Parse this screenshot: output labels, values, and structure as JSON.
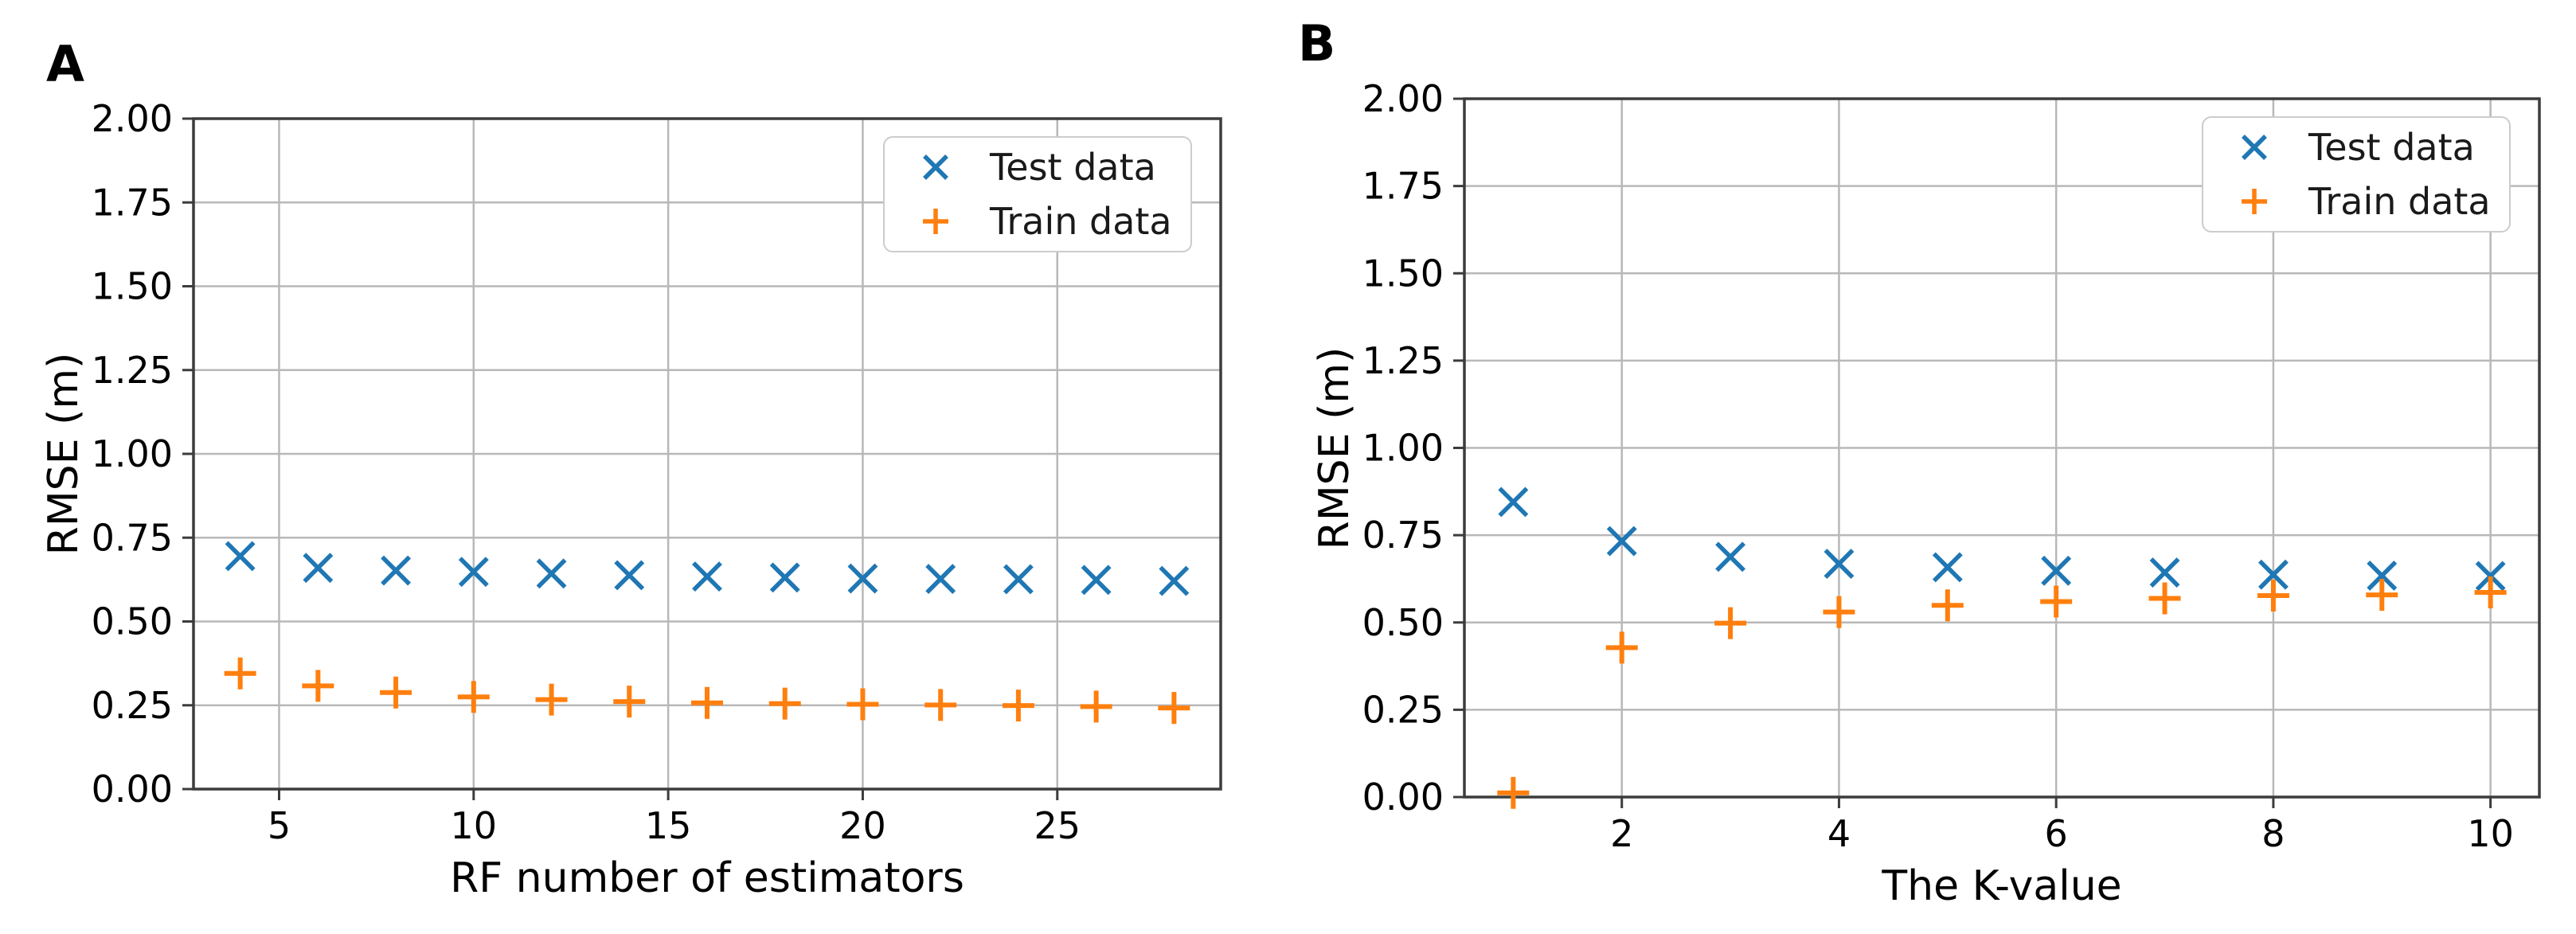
{
  "figure": {
    "background": "#ffffff",
    "panel_count": 2
  },
  "style": {
    "test_color": "#1f77b4",
    "train_color": "#ff7f0e",
    "grid_color": "#b8b8b8",
    "spine_color": "#3c3c3c",
    "tick_color": "#3c3c3c",
    "text_color": "#000000",
    "legend_border_color": "#cccccc"
  },
  "chart_data": [
    {
      "type": "scatter",
      "panel_label": "A",
      "xlabel": "RF number of estimators",
      "ylabel": "RMSE (m)",
      "xlim": [
        2.8,
        29.2
      ],
      "ylim": [
        0,
        2
      ],
      "xticks": [
        5,
        10,
        15,
        20,
        25
      ],
      "yticks": [
        0.0,
        0.25,
        0.5,
        0.75,
        1.0,
        1.25,
        1.5,
        1.75,
        2.0
      ],
      "grid": true,
      "legend_position": "upper right",
      "x": [
        4,
        6,
        8,
        10,
        12,
        14,
        16,
        18,
        20,
        22,
        24,
        26,
        28
      ],
      "series": [
        {
          "name": "Test data",
          "marker": "x",
          "color": "#1f77b4",
          "values": [
            0.695,
            0.66,
            0.652,
            0.648,
            0.643,
            0.638,
            0.634,
            0.631,
            0.628,
            0.627,
            0.626,
            0.624,
            0.621
          ]
        },
        {
          "name": "Train data",
          "marker": "+",
          "color": "#ff7f0e",
          "values": [
            0.345,
            0.308,
            0.288,
            0.275,
            0.267,
            0.261,
            0.257,
            0.255,
            0.253,
            0.251,
            0.249,
            0.246,
            0.242
          ]
        }
      ]
    },
    {
      "type": "scatter",
      "panel_label": "B",
      "xlabel": "The K-value",
      "ylabel": "RMSE (m)",
      "xlim": [
        0.55,
        10.45
      ],
      "ylim": [
        0,
        2
      ],
      "xticks": [
        2,
        4,
        6,
        8,
        10
      ],
      "yticks": [
        0.0,
        0.25,
        0.5,
        0.75,
        1.0,
        1.25,
        1.5,
        1.75,
        2.0
      ],
      "grid": true,
      "legend_position": "upper right",
      "x": [
        1,
        2,
        3,
        4,
        5,
        6,
        7,
        8,
        9,
        10
      ],
      "series": [
        {
          "name": "Test data",
          "marker": "x",
          "color": "#1f77b4",
          "values": [
            0.845,
            0.733,
            0.688,
            0.668,
            0.658,
            0.648,
            0.643,
            0.637,
            0.634,
            0.633
          ]
        },
        {
          "name": "Train data",
          "marker": "+",
          "color": "#ff7f0e",
          "values": [
            0.012,
            0.428,
            0.498,
            0.53,
            0.549,
            0.56,
            0.569,
            0.577,
            0.579,
            0.586
          ]
        }
      ]
    }
  ]
}
